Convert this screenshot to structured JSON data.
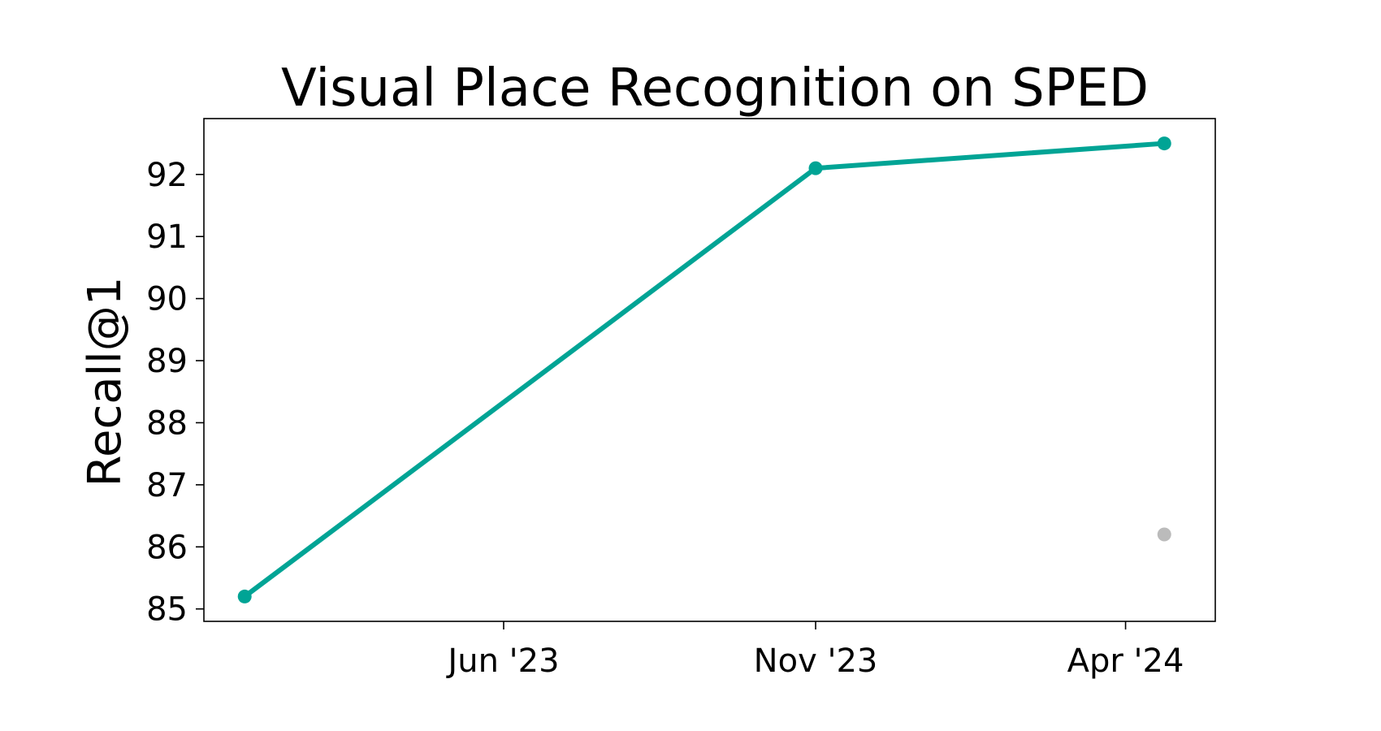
{
  "chart_data": {
    "type": "line",
    "title": "Visual Place Recognition on SPED",
    "xlabel": "",
    "ylabel": "Recall@1",
    "x_tick_labels": [
      "Jun '23",
      "Nov '23",
      "Apr '24"
    ],
    "x_tick_dates": [
      "2023-06-01",
      "2023-11-01",
      "2024-04-01"
    ],
    "xlim": [
      "2023-01-05",
      "2024-05-15"
    ],
    "ylim": [
      84.8,
      92.9
    ],
    "y_ticks": [
      85,
      86,
      87,
      88,
      89,
      90,
      91,
      92
    ],
    "grid": false,
    "series": [
      {
        "color": "#00a495",
        "points": [
          {
            "x": "2023-01-25",
            "y": 85.2
          },
          {
            "x": "2023-11-01",
            "y": 92.1
          },
          {
            "x": "2024-04-20",
            "y": 92.5
          }
        ]
      }
    ],
    "other_points": [
      {
        "x": "2024-04-20",
        "y": 86.2,
        "color": "#bbbbbb"
      }
    ]
  }
}
